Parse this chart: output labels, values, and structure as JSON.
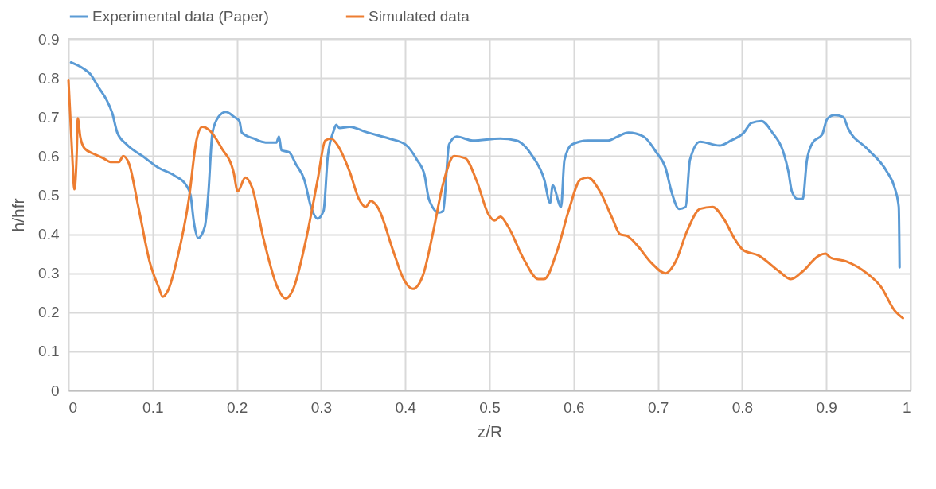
{
  "chart_data": {
    "type": "line",
    "xlabel": "z/R",
    "ylabel": "h/hfr",
    "xlim": [
      0,
      1
    ],
    "ylim": [
      0,
      0.9
    ],
    "xticks": [
      0,
      0.1,
      0.2,
      0.3,
      0.4,
      0.5,
      0.6,
      0.7,
      0.8,
      0.9,
      1
    ],
    "yticks": [
      0,
      0.1,
      0.2,
      0.3,
      0.4,
      0.5,
      0.6,
      0.7,
      0.8,
      0.9
    ],
    "grid": true,
    "legend": "top",
    "marker": "none",
    "line_style": "solid",
    "series": [
      {
        "name": "Experimental data (Paper)",
        "color": "#5b9bd5",
        "x": [
          0.003,
          0.017,
          0.026,
          0.036,
          0.045,
          0.052,
          0.058,
          0.069,
          0.088,
          0.107,
          0.126,
          0.14,
          0.145,
          0.149,
          0.154,
          0.162,
          0.166,
          0.171,
          0.178,
          0.187,
          0.197,
          0.203,
          0.206,
          0.22,
          0.234,
          0.247,
          0.25,
          0.253,
          0.262,
          0.27,
          0.28,
          0.288,
          0.296,
          0.303,
          0.308,
          0.315,
          0.318,
          0.322,
          0.334,
          0.353,
          0.381,
          0.4,
          0.414,
          0.423,
          0.428,
          0.44,
          0.445,
          0.452,
          0.461,
          0.48,
          0.513,
          0.532,
          0.551,
          0.565,
          0.572,
          0.575,
          0.585,
          0.589,
          0.598,
          0.617,
          0.641,
          0.652,
          0.665,
          0.683,
          0.698,
          0.709,
          0.716,
          0.725,
          0.733,
          0.738,
          0.75,
          0.773,
          0.787,
          0.802,
          0.811,
          0.823,
          0.836,
          0.849,
          0.855,
          0.859,
          0.866,
          0.872,
          0.877,
          0.884,
          0.895,
          0.901,
          0.91,
          0.92,
          0.926,
          0.948,
          0.972,
          0.981,
          0.986,
          0.987
        ],
        "values": [
          0.84,
          0.825,
          0.81,
          0.775,
          0.745,
          0.71,
          0.66,
          0.63,
          0.6,
          0.57,
          0.55,
          0.525,
          0.5,
          0.43,
          0.39,
          0.42,
          0.5,
          0.66,
          0.7,
          0.713,
          0.7,
          0.69,
          0.66,
          0.645,
          0.635,
          0.635,
          0.65,
          0.615,
          0.61,
          0.58,
          0.54,
          0.47,
          0.44,
          0.46,
          0.6,
          0.665,
          0.68,
          0.672,
          0.675,
          0.662,
          0.645,
          0.63,
          0.59,
          0.55,
          0.49,
          0.455,
          0.46,
          0.63,
          0.65,
          0.64,
          0.645,
          0.64,
          0.6,
          0.54,
          0.48,
          0.525,
          0.47,
          0.59,
          0.63,
          0.64,
          0.64,
          0.65,
          0.66,
          0.65,
          0.61,
          0.57,
          0.51,
          0.465,
          0.47,
          0.59,
          0.637,
          0.627,
          0.64,
          0.66,
          0.685,
          0.69,
          0.66,
          0.61,
          0.56,
          0.51,
          0.49,
          0.49,
          0.59,
          0.635,
          0.655,
          0.695,
          0.705,
          0.7,
          0.67,
          0.62,
          0.56,
          0.52,
          0.47,
          0.315
        ]
      },
      {
        "name": "Simulated data",
        "color": "#ed7d31",
        "x": [
          0,
          0.005,
          0.007,
          0.01,
          0.011,
          0.014,
          0.019,
          0.031,
          0.041,
          0.05,
          0.06,
          0.065,
          0.072,
          0.083,
          0.097,
          0.107,
          0.112,
          0.118,
          0.13,
          0.143,
          0.152,
          0.159,
          0.168,
          0.182,
          0.196,
          0.201,
          0.21,
          0.218,
          0.232,
          0.249,
          0.258,
          0.267,
          0.282,
          0.296,
          0.305,
          0.312,
          0.319,
          0.334,
          0.345,
          0.353,
          0.359,
          0.367,
          0.386,
          0.398,
          0.409,
          0.421,
          0.433,
          0.445,
          0.458,
          0.471,
          0.485,
          0.499,
          0.506,
          0.513,
          0.522,
          0.541,
          0.558,
          0.565,
          0.58,
          0.594,
          0.608,
          0.617,
          0.631,
          0.646,
          0.655,
          0.664,
          0.674,
          0.693,
          0.709,
          0.721,
          0.735,
          0.75,
          0.765,
          0.778,
          0.792,
          0.801,
          0.82,
          0.844,
          0.858,
          0.872,
          0.891,
          0.899,
          0.905,
          0.924,
          0.948,
          0.965,
          0.981,
          0.991
        ],
        "values": [
          0.795,
          0.58,
          0.515,
          0.62,
          0.697,
          0.65,
          0.62,
          0.605,
          0.595,
          0.585,
          0.585,
          0.6,
          0.58,
          0.47,
          0.325,
          0.265,
          0.24,
          0.255,
          0.345,
          0.49,
          0.64,
          0.675,
          0.665,
          0.62,
          0.56,
          0.51,
          0.545,
          0.52,
          0.385,
          0.26,
          0.235,
          0.26,
          0.385,
          0.54,
          0.64,
          0.645,
          0.63,
          0.56,
          0.49,
          0.47,
          0.485,
          0.47,
          0.355,
          0.285,
          0.26,
          0.295,
          0.405,
          0.53,
          0.6,
          0.595,
          0.535,
          0.45,
          0.435,
          0.445,
          0.42,
          0.335,
          0.285,
          0.285,
          0.355,
          0.46,
          0.54,
          0.545,
          0.51,
          0.44,
          0.4,
          0.395,
          0.375,
          0.325,
          0.3,
          0.33,
          0.41,
          0.465,
          0.47,
          0.44,
          0.385,
          0.36,
          0.345,
          0.305,
          0.285,
          0.305,
          0.345,
          0.35,
          0.34,
          0.33,
          0.3,
          0.265,
          0.205,
          0.185
        ]
      }
    ]
  }
}
